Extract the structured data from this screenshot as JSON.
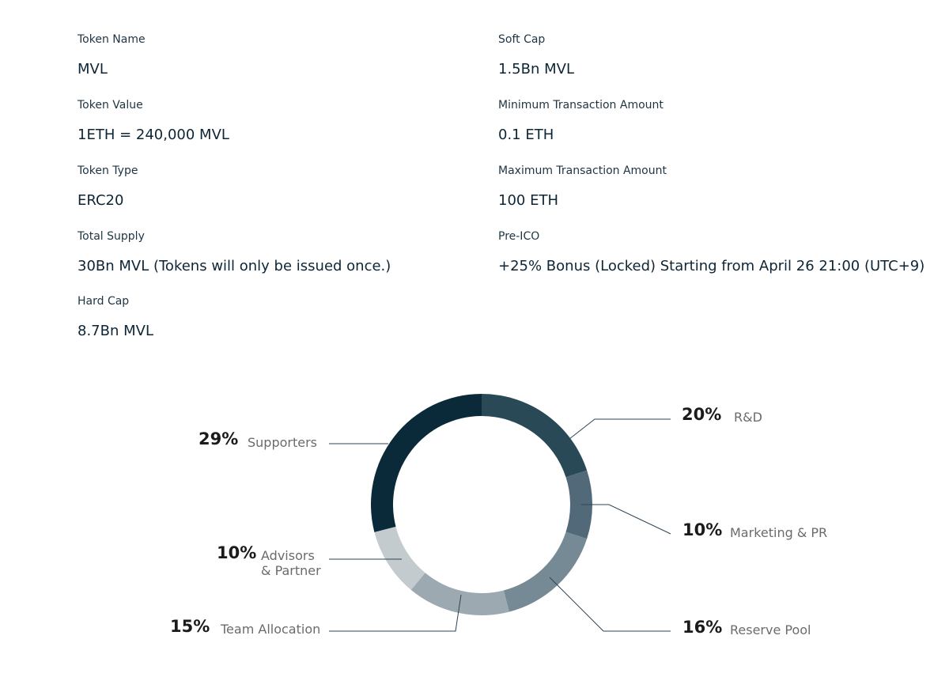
{
  "token_info": {
    "left": [
      {
        "label": "Token Name",
        "value": "MVL"
      },
      {
        "label": "Token Value",
        "value": "1ETH = 240,000 MVL"
      },
      {
        "label": "Token Type",
        "value": "ERC20"
      },
      {
        "label": "Total Supply",
        "value": "30Bn MVL (Tokens will only be issued once.)"
      },
      {
        "label": "Hard Cap",
        "value": "8.7Bn MVL"
      }
    ],
    "right": [
      {
        "label": "Soft Cap",
        "value": "1.5Bn MVL"
      },
      {
        "label": "Minimum Transaction Amount",
        "value": "0.1 ETH"
      },
      {
        "label": "Maximum Transaction Amount",
        "value": "100 ETH"
      },
      {
        "label": "Pre-ICO",
        "value": "+25% Bonus (Locked) Starting from April 26 21:00 (UTC+9)"
      }
    ]
  },
  "chart_data": {
    "type": "pie",
    "style": "donut",
    "title": "",
    "slices": [
      {
        "name": "R&D",
        "pct_label": "20%",
        "value": 20,
        "color": "#2a4957"
      },
      {
        "name": "Marketing & PR",
        "pct_label": "10%",
        "value": 10,
        "color": "#52697a"
      },
      {
        "name": "Reserve Pool",
        "pct_label": "16%",
        "value": 16,
        "color": "#768a95"
      },
      {
        "name": "Team Allocation",
        "pct_label": "15%",
        "value": 15,
        "color": "#9ca9b1"
      },
      {
        "name": "Advisors & Partner",
        "name_lines": [
          "Advisors",
          "& Partner"
        ],
        "pct_label": "10%",
        "value": 10,
        "color": "#c3cbcf"
      },
      {
        "name": "Supporters",
        "pct_label": "29%",
        "value": 29,
        "color": "#0a2a39"
      }
    ],
    "start": "top",
    "direction": "clockwise",
    "leader_color": "#2d4655"
  }
}
